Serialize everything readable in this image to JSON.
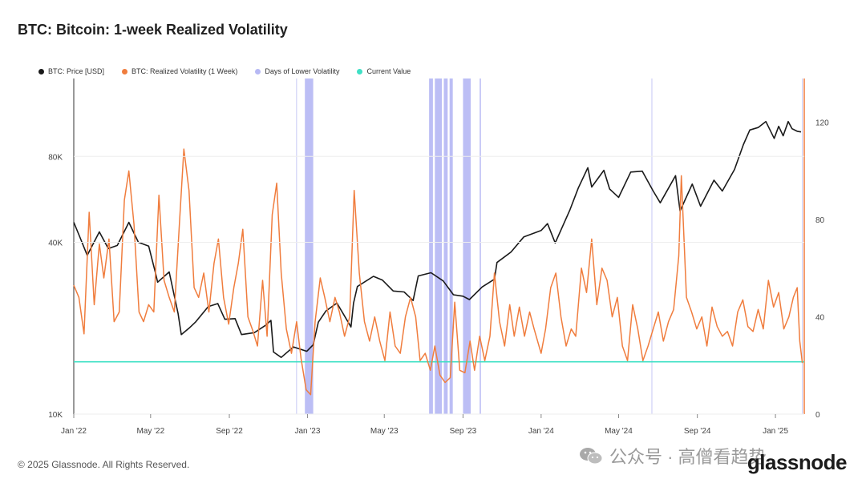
{
  "title": "BTC: Bitcoin: 1-week Realized Volatility",
  "legend": [
    {
      "label": "BTC: Price [USD]",
      "color": "#1a1a1a"
    },
    {
      "label": "BTC: Realized Volatility (1 Week)",
      "color": "#f07d3e"
    },
    {
      "label": "Days of Lower Volatility",
      "color": "#b7b9f4"
    },
    {
      "label": "Current Value",
      "color": "#3fe0c5"
    }
  ],
  "footer": {
    "copyright": "© 2025 Glassnode. All Rights Reserved.",
    "watermark": "公众号 · 高僧看趋势",
    "brand": "glassnode"
  },
  "chart_data": {
    "type": "line",
    "x_axis": {
      "type": "date",
      "range": [
        "2022-01-01",
        "2025-02-15"
      ],
      "tick_labels": [
        "Jan '22",
        "May '22",
        "Sep '22",
        "Jan '23",
        "May '23",
        "Sep '23",
        "Jan '24",
        "May '24",
        "Sep '24",
        "Jan '25"
      ],
      "tick_dates": [
        "2022-01-01",
        "2022-05-01",
        "2022-09-01",
        "2023-01-01",
        "2023-05-01",
        "2023-09-01",
        "2024-01-01",
        "2024-05-01",
        "2024-09-01",
        "2025-01-01"
      ]
    },
    "left_axis": {
      "scale": "log",
      "range": [
        10000,
        150000
      ],
      "tick_labels": [
        "10K",
        "40K",
        "80K"
      ],
      "ticks": [
        10000,
        40000,
        80000
      ]
    },
    "right_axis": {
      "scale": "linear",
      "range": [
        0,
        138
      ],
      "tick_labels": [
        "0",
        "40",
        "80",
        "120"
      ],
      "ticks": [
        0,
        40,
        80,
        120
      ]
    },
    "current_value": 21.5,
    "series": [
      {
        "name": "BTC: Price [USD]",
        "axis": "left",
        "color": "#1a1a1a",
        "points": [
          [
            "2022-01-01",
            47000
          ],
          [
            "2022-01-10",
            42000
          ],
          [
            "2022-01-22",
            36000
          ],
          [
            "2022-02-10",
            43500
          ],
          [
            "2022-02-24",
            38000
          ],
          [
            "2022-03-10",
            39000
          ],
          [
            "2022-03-28",
            47000
          ],
          [
            "2022-04-12",
            40000
          ],
          [
            "2022-04-28",
            38800
          ],
          [
            "2022-05-09",
            31000
          ],
          [
            "2022-05-12",
            29000
          ],
          [
            "2022-05-30",
            31500
          ],
          [
            "2022-06-13",
            22500
          ],
          [
            "2022-06-18",
            19000
          ],
          [
            "2022-06-30",
            20000
          ],
          [
            "2022-07-10",
            21000
          ],
          [
            "2022-07-30",
            23800
          ],
          [
            "2022-08-14",
            24400
          ],
          [
            "2022-08-25",
            21500
          ],
          [
            "2022-09-10",
            21600
          ],
          [
            "2022-09-20",
            19000
          ],
          [
            "2022-10-10",
            19300
          ],
          [
            "2022-10-28",
            20500
          ],
          [
            "2022-11-05",
            21300
          ],
          [
            "2022-11-09",
            16500
          ],
          [
            "2022-11-21",
            15800
          ],
          [
            "2022-12-10",
            17200
          ],
          [
            "2022-12-31",
            16600
          ],
          [
            "2023-01-10",
            17500
          ],
          [
            "2023-01-18",
            21000
          ],
          [
            "2023-01-30",
            23000
          ],
          [
            "2023-02-16",
            24500
          ],
          [
            "2023-03-10",
            20200
          ],
          [
            "2023-03-14",
            24500
          ],
          [
            "2023-03-20",
            28000
          ],
          [
            "2023-04-14",
            30400
          ],
          [
            "2023-04-28",
            29500
          ],
          [
            "2023-05-15",
            27000
          ],
          [
            "2023-06-01",
            26800
          ],
          [
            "2023-06-15",
            25000
          ],
          [
            "2023-06-23",
            30500
          ],
          [
            "2023-07-13",
            31300
          ],
          [
            "2023-08-01",
            29300
          ],
          [
            "2023-08-17",
            26200
          ],
          [
            "2023-09-01",
            25900
          ],
          [
            "2023-09-11",
            25200
          ],
          [
            "2023-10-01",
            27900
          ],
          [
            "2023-10-20",
            29700
          ],
          [
            "2023-10-24",
            34000
          ],
          [
            "2023-11-15",
            37000
          ],
          [
            "2023-12-05",
            41800
          ],
          [
            "2024-01-01",
            44000
          ],
          [
            "2024-01-11",
            46500
          ],
          [
            "2024-01-23",
            39800
          ],
          [
            "2024-02-15",
            52000
          ],
          [
            "2024-02-28",
            62000
          ],
          [
            "2024-03-14",
            73000
          ],
          [
            "2024-03-20",
            62500
          ],
          [
            "2024-04-08",
            71500
          ],
          [
            "2024-04-17",
            61500
          ],
          [
            "2024-05-01",
            57500
          ],
          [
            "2024-05-20",
            70500
          ],
          [
            "2024-06-07",
            71000
          ],
          [
            "2024-06-24",
            60500
          ],
          [
            "2024-07-05",
            55000
          ],
          [
            "2024-07-29",
            68500
          ],
          [
            "2024-08-05",
            51500
          ],
          [
            "2024-08-24",
            64000
          ],
          [
            "2024-09-06",
            53500
          ],
          [
            "2024-09-27",
            66000
          ],
          [
            "2024-10-10",
            60500
          ],
          [
            "2024-10-29",
            72000
          ],
          [
            "2024-11-12",
            88000
          ],
          [
            "2024-11-22",
            99000
          ],
          [
            "2024-12-05",
            101000
          ],
          [
            "2024-12-17",
            106000
          ],
          [
            "2024-12-30",
            92500
          ],
          [
            "2025-01-06",
            102000
          ],
          [
            "2025-01-13",
            94500
          ],
          [
            "2025-01-21",
            106000
          ],
          [
            "2025-01-27",
            100000
          ],
          [
            "2025-02-04",
            98000
          ],
          [
            "2025-02-10",
            97500
          ]
        ]
      },
      {
        "name": "BTC: Realized Volatility (1 Week)",
        "axis": "right",
        "color": "#f07d3e",
        "points": [
          [
            "2022-01-01",
            53
          ],
          [
            "2022-01-09",
            48
          ],
          [
            "2022-01-17",
            33
          ],
          [
            "2022-01-25",
            83
          ],
          [
            "2022-02-02",
            45
          ],
          [
            "2022-02-10",
            70
          ],
          [
            "2022-02-17",
            56
          ],
          [
            "2022-02-25",
            72
          ],
          [
            "2022-03-05",
            38
          ],
          [
            "2022-03-13",
            42
          ],
          [
            "2022-03-21",
            88
          ],
          [
            "2022-03-28",
            100
          ],
          [
            "2022-04-05",
            78
          ],
          [
            "2022-04-13",
            42
          ],
          [
            "2022-04-20",
            38
          ],
          [
            "2022-04-28",
            45
          ],
          [
            "2022-05-06",
            42
          ],
          [
            "2022-05-14",
            90
          ],
          [
            "2022-05-22",
            55
          ],
          [
            "2022-05-30",
            48
          ],
          [
            "2022-06-07",
            42
          ],
          [
            "2022-06-15",
            78
          ],
          [
            "2022-06-22",
            109
          ],
          [
            "2022-06-30",
            92
          ],
          [
            "2022-07-08",
            52
          ],
          [
            "2022-07-15",
            48
          ],
          [
            "2022-07-23",
            58
          ],
          [
            "2022-07-31",
            42
          ],
          [
            "2022-08-08",
            62
          ],
          [
            "2022-08-15",
            72
          ],
          [
            "2022-08-23",
            48
          ],
          [
            "2022-08-31",
            37
          ],
          [
            "2022-09-08",
            52
          ],
          [
            "2022-09-15",
            62
          ],
          [
            "2022-09-22",
            76
          ],
          [
            "2022-09-30",
            40
          ],
          [
            "2022-10-08",
            34
          ],
          [
            "2022-10-15",
            28
          ],
          [
            "2022-10-23",
            55
          ],
          [
            "2022-10-30",
            32
          ],
          [
            "2022-11-07",
            82
          ],
          [
            "2022-11-14",
            95
          ],
          [
            "2022-11-21",
            58
          ],
          [
            "2022-11-29",
            35
          ],
          [
            "2022-12-07",
            25
          ],
          [
            "2022-12-15",
            38
          ],
          [
            "2022-12-22",
            23
          ],
          [
            "2022-12-30",
            10
          ],
          [
            "2023-01-06",
            8
          ],
          [
            "2023-01-13",
            38
          ],
          [
            "2023-01-21",
            56
          ],
          [
            "2023-01-28",
            48
          ],
          [
            "2023-02-05",
            38
          ],
          [
            "2023-02-13",
            48
          ],
          [
            "2023-02-20",
            42
          ],
          [
            "2023-02-28",
            32
          ],
          [
            "2023-03-08",
            40
          ],
          [
            "2023-03-15",
            92
          ],
          [
            "2023-03-23",
            58
          ],
          [
            "2023-03-31",
            38
          ],
          [
            "2023-04-08",
            30
          ],
          [
            "2023-04-16",
            40
          ],
          [
            "2023-04-24",
            30
          ],
          [
            "2023-05-02",
            22
          ],
          [
            "2023-05-10",
            42
          ],
          [
            "2023-05-18",
            28
          ],
          [
            "2023-05-26",
            25
          ],
          [
            "2023-06-03",
            40
          ],
          [
            "2023-06-11",
            48
          ],
          [
            "2023-06-19",
            40
          ],
          [
            "2023-06-26",
            22
          ],
          [
            "2023-07-04",
            25
          ],
          [
            "2023-07-12",
            18
          ],
          [
            "2023-07-19",
            28
          ],
          [
            "2023-07-27",
            16
          ],
          [
            "2023-08-04",
            13
          ],
          [
            "2023-08-12",
            15
          ],
          [
            "2023-08-19",
            46
          ],
          [
            "2023-08-27",
            18
          ],
          [
            "2023-09-04",
            17
          ],
          [
            "2023-09-12",
            30
          ],
          [
            "2023-09-19",
            18
          ],
          [
            "2023-09-27",
            32
          ],
          [
            "2023-10-05",
            22
          ],
          [
            "2023-10-13",
            32
          ],
          [
            "2023-10-20",
            58
          ],
          [
            "2023-10-28",
            38
          ],
          [
            "2023-11-05",
            28
          ],
          [
            "2023-11-13",
            45
          ],
          [
            "2023-11-20",
            32
          ],
          [
            "2023-11-28",
            44
          ],
          [
            "2023-12-06",
            32
          ],
          [
            "2023-12-14",
            42
          ],
          [
            "2023-12-21",
            35
          ],
          [
            "2024-01-01",
            25
          ],
          [
            "2024-01-08",
            35
          ],
          [
            "2024-01-16",
            52
          ],
          [
            "2024-01-24",
            58
          ],
          [
            "2024-02-01",
            40
          ],
          [
            "2024-02-09",
            28
          ],
          [
            "2024-02-17",
            35
          ],
          [
            "2024-02-24",
            32
          ],
          [
            "2024-03-04",
            60
          ],
          [
            "2024-03-12",
            50
          ],
          [
            "2024-03-20",
            72
          ],
          [
            "2024-03-28",
            45
          ],
          [
            "2024-04-05",
            60
          ],
          [
            "2024-04-13",
            55
          ],
          [
            "2024-04-21",
            40
          ],
          [
            "2024-04-29",
            48
          ],
          [
            "2024-05-07",
            28
          ],
          [
            "2024-05-15",
            22
          ],
          [
            "2024-05-23",
            45
          ],
          [
            "2024-05-31",
            35
          ],
          [
            "2024-06-08",
            22
          ],
          [
            "2024-06-16",
            28
          ],
          [
            "2024-06-24",
            35
          ],
          [
            "2024-07-02",
            42
          ],
          [
            "2024-07-10",
            30
          ],
          [
            "2024-07-18",
            38
          ],
          [
            "2024-07-26",
            43
          ],
          [
            "2024-08-03",
            65
          ],
          [
            "2024-08-07",
            98
          ],
          [
            "2024-08-15",
            48
          ],
          [
            "2024-08-23",
            42
          ],
          [
            "2024-08-31",
            35
          ],
          [
            "2024-09-08",
            40
          ],
          [
            "2024-09-16",
            28
          ],
          [
            "2024-09-24",
            44
          ],
          [
            "2024-10-02",
            36
          ],
          [
            "2024-10-10",
            32
          ],
          [
            "2024-10-18",
            34
          ],
          [
            "2024-10-26",
            28
          ],
          [
            "2024-11-03",
            42
          ],
          [
            "2024-11-11",
            47
          ],
          [
            "2024-11-19",
            36
          ],
          [
            "2024-11-27",
            34
          ],
          [
            "2024-12-05",
            43
          ],
          [
            "2024-12-13",
            35
          ],
          [
            "2024-12-21",
            55
          ],
          [
            "2024-12-29",
            44
          ],
          [
            "2025-01-06",
            50
          ],
          [
            "2025-01-14",
            35
          ],
          [
            "2025-01-22",
            40
          ],
          [
            "2025-01-29",
            48
          ],
          [
            "2025-02-04",
            52
          ],
          [
            "2025-02-08",
            30
          ],
          [
            "2025-02-12",
            21
          ]
        ]
      }
    ],
    "lower_volatility_periods": [
      [
        "2022-12-28",
        "2023-01-10"
      ],
      [
        "2023-07-10",
        "2023-07-16"
      ],
      [
        "2023-07-19",
        "2023-07-30"
      ],
      [
        "2023-08-02",
        "2023-08-08"
      ],
      [
        "2023-08-11",
        "2023-08-16"
      ],
      [
        "2023-09-01",
        "2023-09-13"
      ],
      [
        "2023-09-27",
        "2023-09-29"
      ]
    ],
    "lower_volatility_markers": [
      "2022-12-15",
      "2024-06-22",
      "2025-02-12"
    ]
  }
}
